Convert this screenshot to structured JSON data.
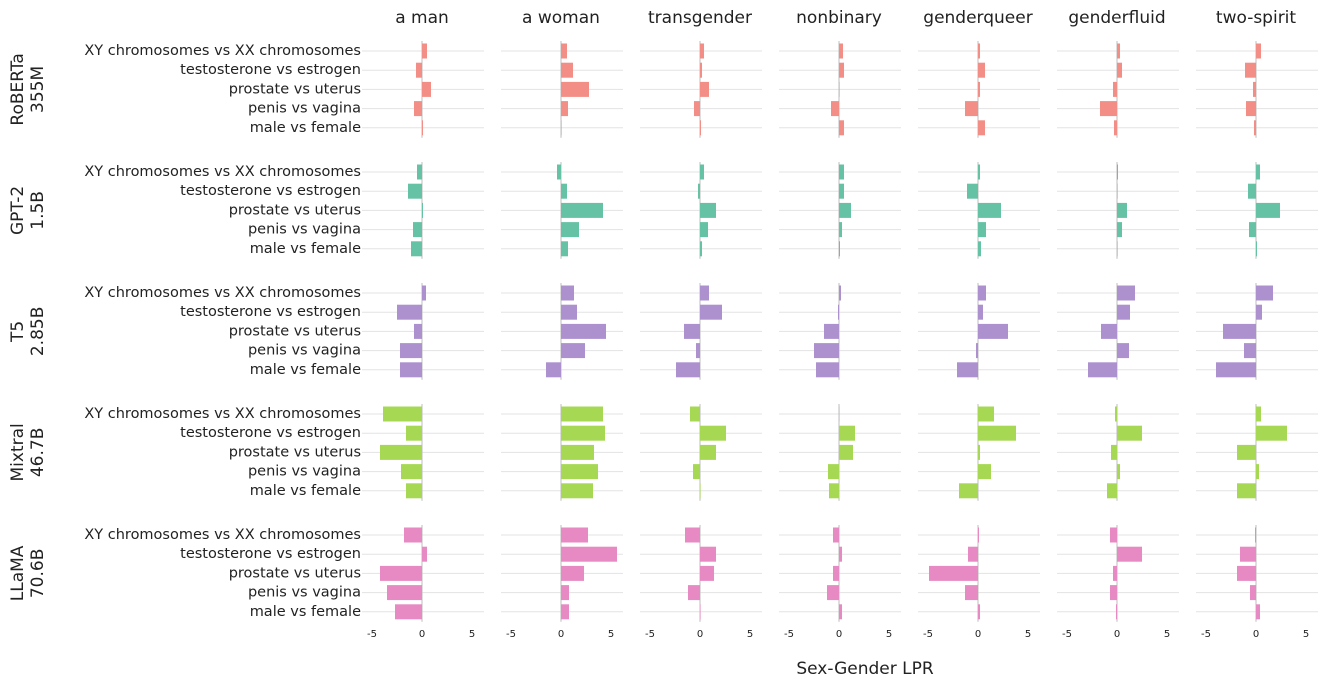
{
  "chart_data": {
    "type": "bar",
    "orientation": "horizontal",
    "x_label": "Sex-Gender LPR",
    "columns": [
      "a man",
      "a woman",
      "transgender",
      "nonbinary",
      "genderqueer",
      "genderfluid",
      "two-spirit"
    ],
    "categories": [
      "XY chromosomes vs XX chromosomes",
      "testosterone vs estrogen",
      "prostate vs uterus",
      "penis vs vagina",
      "male vs female"
    ],
    "xlim": [
      -6,
      6.2
    ],
    "xticks": [
      -5,
      0,
      5
    ],
    "grid": true,
    "rows": [
      {
        "label": [
          "RoBERTa",
          "355M"
        ],
        "color": "#f28e85",
        "values": [
          [
            0.5,
            -0.6,
            0.9,
            -0.8,
            0.1
          ],
          [
            0.6,
            1.2,
            2.8,
            0.7,
            0.05
          ],
          [
            0.4,
            0.2,
            0.9,
            -0.6,
            0.1
          ],
          [
            0.4,
            0.5,
            0.05,
            -0.8,
            0.5
          ],
          [
            0.2,
            0.7,
            0.2,
            -1.3,
            0.7
          ],
          [
            0.3,
            0.5,
            -0.4,
            -1.7,
            -0.3
          ],
          [
            0.5,
            -1.1,
            -0.3,
            -1.0,
            -0.2
          ]
        ]
      },
      {
        "label": [
          "GPT-2",
          "1.5B"
        ],
        "color": "#66c2a5",
        "values": [
          [
            -0.5,
            -1.4,
            0.1,
            -0.9,
            -1.1
          ],
          [
            -0.4,
            0.6,
            4.2,
            1.8,
            0.7
          ],
          [
            0.4,
            -0.2,
            1.6,
            0.8,
            0.2
          ],
          [
            0.5,
            0.5,
            1.2,
            0.3,
            0.1
          ],
          [
            0.2,
            -1.1,
            2.3,
            0.8,
            0.3
          ],
          [
            0.1,
            0.05,
            1.0,
            0.5,
            0.05
          ],
          [
            0.4,
            -0.8,
            2.4,
            -0.7,
            0.1
          ]
        ]
      },
      {
        "label": [
          "T5",
          "2.85B"
        ],
        "color": "#ad91cf",
        "values": [
          [
            0.4,
            -2.5,
            -0.8,
            -2.2,
            -2.2
          ],
          [
            1.3,
            1.6,
            4.5,
            2.4,
            -1.5
          ],
          [
            0.9,
            2.2,
            -1.6,
            -0.4,
            -2.4
          ],
          [
            0.2,
            -0.1,
            -1.5,
            -2.5,
            -2.3
          ],
          [
            0.8,
            0.5,
            3.0,
            -0.2,
            -2.1
          ],
          [
            1.8,
            1.3,
            -1.6,
            1.2,
            -2.9
          ],
          [
            1.7,
            0.6,
            -3.3,
            -1.2,
            -4.0
          ]
        ]
      },
      {
        "label": [
          "Mixtral",
          "46.7B"
        ],
        "color": "#a6d854",
        "values": [
          [
            -3.9,
            -1.6,
            -4.2,
            -2.1,
            -1.6
          ],
          [
            4.2,
            4.4,
            3.3,
            3.7,
            3.2
          ],
          [
            -1.0,
            2.6,
            1.6,
            -0.7,
            0.05
          ],
          [
            0.05,
            1.6,
            1.4,
            -1.1,
            -1.0
          ],
          [
            1.6,
            3.8,
            0.2,
            1.3,
            -1.9
          ],
          [
            -0.2,
            2.5,
            -0.6,
            0.3,
            -1.0
          ],
          [
            0.5,
            3.1,
            -1.9,
            0.3,
            -1.9
          ]
        ]
      },
      {
        "label": [
          "LLaMA",
          "70.6B"
        ],
        "color": "#e78ac3",
        "values": [
          [
            -1.8,
            0.5,
            -4.2,
            -3.5,
            -2.7
          ],
          [
            2.7,
            5.6,
            2.3,
            0.8,
            0.8
          ],
          [
            -1.5,
            1.6,
            1.4,
            -1.2,
            0.05
          ],
          [
            -0.6,
            0.3,
            -0.6,
            -1.2,
            0.3
          ],
          [
            0.1,
            -1.0,
            -4.9,
            -1.3,
            0.2
          ],
          [
            -0.7,
            2.5,
            -0.4,
            -0.7,
            -0.1
          ],
          [
            -0.1,
            -1.6,
            -1.9,
            -0.6,
            0.4
          ]
        ]
      }
    ]
  }
}
